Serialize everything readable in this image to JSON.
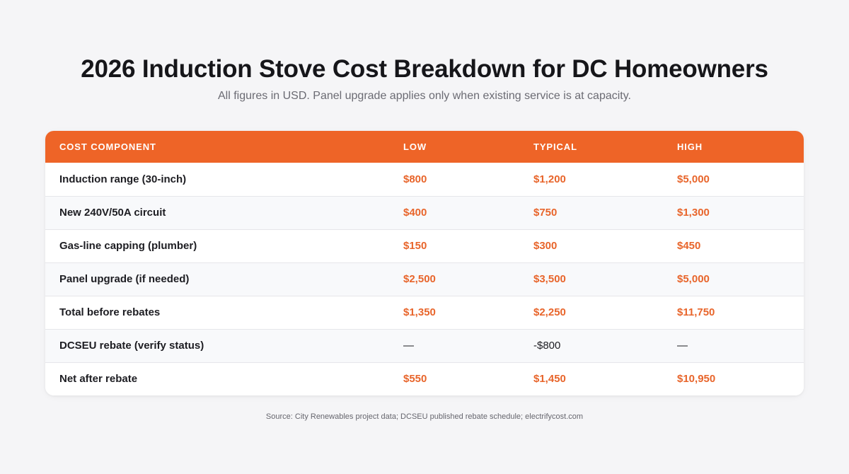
{
  "header": {
    "title": "2026 Induction Stove Cost Breakdown for DC Homeowners",
    "subtitle": "All figures in USD. Panel upgrade applies only when existing service is at capacity."
  },
  "colors": {
    "accent": "#ee6427",
    "value_text": "#e8652b",
    "row_alt": "#f8f9fb"
  },
  "chart_data": {
    "type": "table",
    "columns": [
      "COST COMPONENT",
      "LOW",
      "TYPICAL",
      "HIGH"
    ],
    "rows": [
      {
        "label": "Induction range (30-inch)",
        "low": "$800",
        "typical": "$1,200",
        "high": "$5,000",
        "highlight": true
      },
      {
        "label": "New 240V/50A circuit",
        "low": "$400",
        "typical": "$750",
        "high": "$1,300",
        "highlight": true
      },
      {
        "label": "Gas-line capping (plumber)",
        "low": "$150",
        "typical": "$300",
        "high": "$450",
        "highlight": true
      },
      {
        "label": "Panel upgrade (if needed)",
        "low": "$2,500",
        "typical": "$3,500",
        "high": "$5,000",
        "highlight": true
      },
      {
        "label": "Total before rebates",
        "low": "$1,350",
        "typical": "$2,250",
        "high": "$11,750",
        "highlight": true
      },
      {
        "label": "DCSEU rebate (verify status)",
        "low": "—",
        "typical": "-$800",
        "high": "—",
        "highlight": false
      },
      {
        "label": "Net after rebate",
        "low": "$550",
        "typical": "$1,450",
        "high": "$10,950",
        "highlight": true
      }
    ]
  },
  "footer": {
    "source": "Source: City Renewables project data; DCSEU published rebate schedule; electrifycost.com"
  }
}
